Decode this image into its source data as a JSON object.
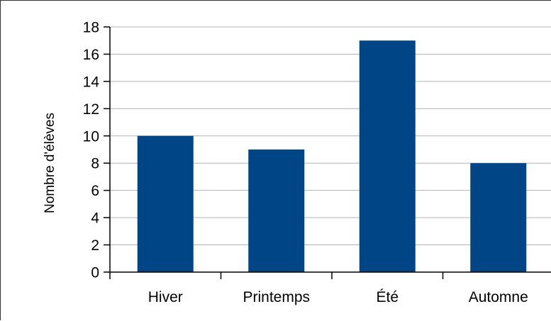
{
  "colors": {
    "bar": "#004586",
    "gridline": "#b3b3b3",
    "axis": "#000000",
    "frame": "#333333"
  },
  "chart_data": {
    "type": "bar",
    "title": "",
    "xlabel": "",
    "ylabel": "Nombre d'élèves",
    "categories": [
      "Hiver",
      "Printemps",
      "Été",
      "Automne"
    ],
    "values": [
      10,
      9,
      17,
      8
    ],
    "ylim": [
      0,
      18
    ],
    "yticks": [
      0,
      2,
      4,
      6,
      8,
      10,
      12,
      14,
      16,
      18
    ],
    "grid": true,
    "legend": "none"
  }
}
